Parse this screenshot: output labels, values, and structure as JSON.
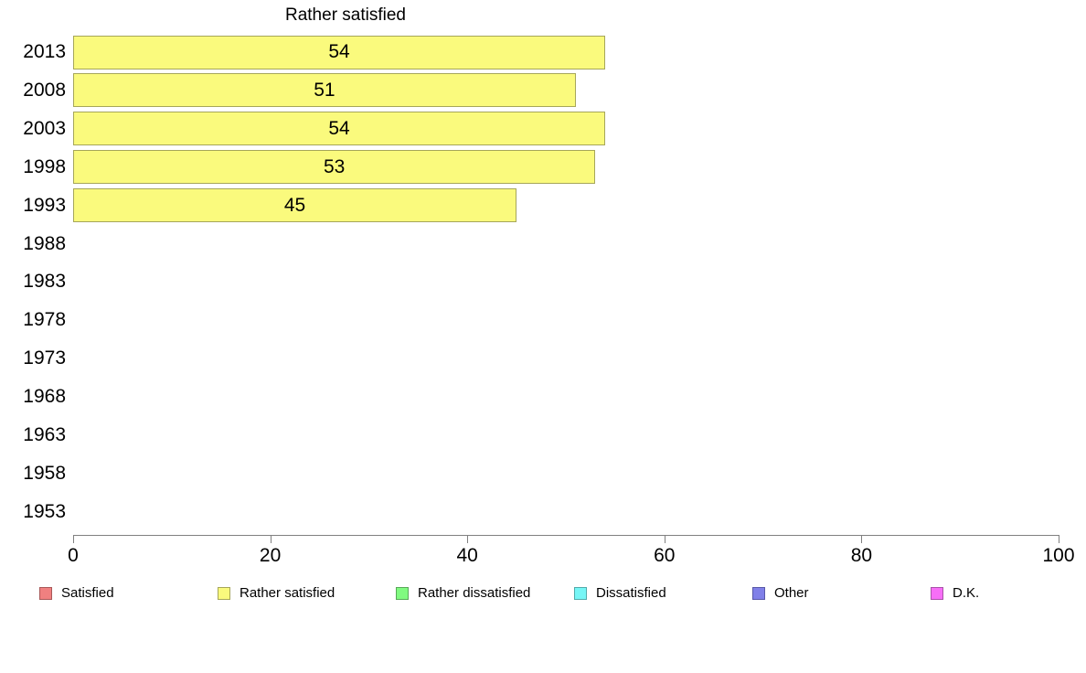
{
  "title": "Rather satisfied",
  "chart_data": {
    "type": "bar",
    "orientation": "horizontal",
    "title": "Rather satisfied",
    "categories": [
      "2013",
      "2008",
      "2003",
      "1998",
      "1993",
      "1988",
      "1983",
      "1978",
      "1973",
      "1968",
      "1963",
      "1958",
      "1953"
    ],
    "values": [
      54,
      51,
      54,
      53,
      45,
      null,
      null,
      null,
      null,
      null,
      null,
      null,
      null
    ],
    "xlabel": "",
    "ylabel": "",
    "xlim": [
      0,
      100
    ],
    "x_ticks": [
      0,
      20,
      40,
      60,
      80,
      100
    ],
    "grid": false,
    "bar_fill_color": "#FAFA7D",
    "bar_border_color": "#A6A65A",
    "axis_color": "#808080",
    "text_color": "#000000",
    "legend_position": "bottom",
    "legend": [
      {
        "label": "Satisfied",
        "color": "#F08080",
        "border": "#A85858"
      },
      {
        "label": "Rather satisfied",
        "color": "#FAFA7D",
        "border": "#A6A65A"
      },
      {
        "label": "Rather dissatisfied",
        "color": "#80FA80",
        "border": "#58A858"
      },
      {
        "label": "Dissatisfied",
        "color": "#76F6F6",
        "border": "#52AAAA"
      },
      {
        "label": "Other",
        "color": "#8080E8",
        "border": "#5858A8"
      },
      {
        "label": "D.K.",
        "color": "#F76EF7",
        "border": "#A852A8"
      }
    ]
  }
}
